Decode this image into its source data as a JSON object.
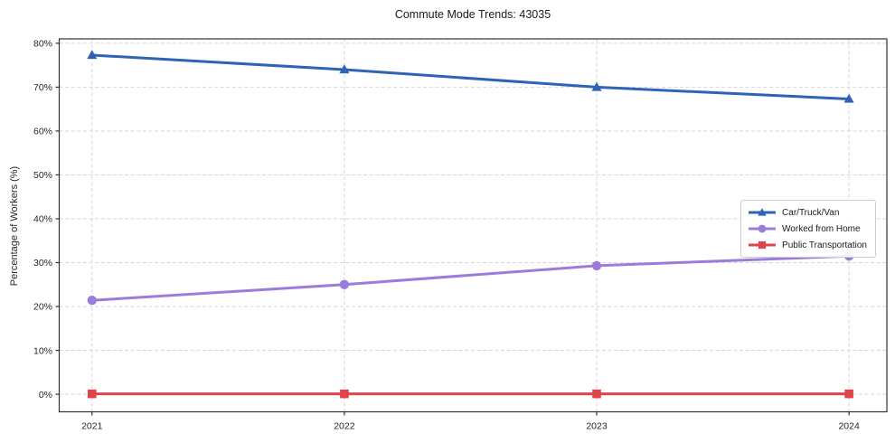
{
  "figure": {
    "background": "#ffffff"
  },
  "chart_data": {
    "type": "line",
    "title": "Commute Mode Trends: 43035",
    "xlabel": "",
    "ylabel": "Percentage of Workers (%)",
    "x": [
      2021,
      2022,
      2023,
      2024
    ],
    "x_tick_labels": [
      "2021",
      "2022",
      "2023",
      "2024"
    ],
    "y_ticks": [
      0,
      10,
      20,
      30,
      40,
      50,
      60,
      70,
      80
    ],
    "y_tick_labels": [
      "0%",
      "10%",
      "20%",
      "30%",
      "40%",
      "50%",
      "60%",
      "70%",
      "80%"
    ],
    "xlim": [
      2020.87,
      2024.15
    ],
    "ylim": [
      -4,
      81
    ],
    "grid": true,
    "grid_style": "dashed",
    "legend_position": "center right",
    "series": [
      {
        "name": "Car/Truck/Van",
        "marker": "triangle",
        "color": "#2f63b5",
        "values": [
          77.3,
          74.0,
          70.0,
          67.3
        ]
      },
      {
        "name": "Worked from Home",
        "marker": "circle",
        "color": "#9b7cdb",
        "values": [
          21.4,
          25.0,
          29.3,
          31.5
        ]
      },
      {
        "name": "Public Transportation",
        "marker": "square",
        "color": "#e0434a",
        "values": [
          0.1,
          0.1,
          0.1,
          0.1
        ]
      }
    ]
  },
  "style": {
    "grid_color": "#d6d6d6",
    "spine_color": "#333333",
    "tick_label_color": "#262626",
    "title_color": "#1a1a1a",
    "legend_border_color": "#cccccc",
    "legend_bg": "#ffffff"
  }
}
